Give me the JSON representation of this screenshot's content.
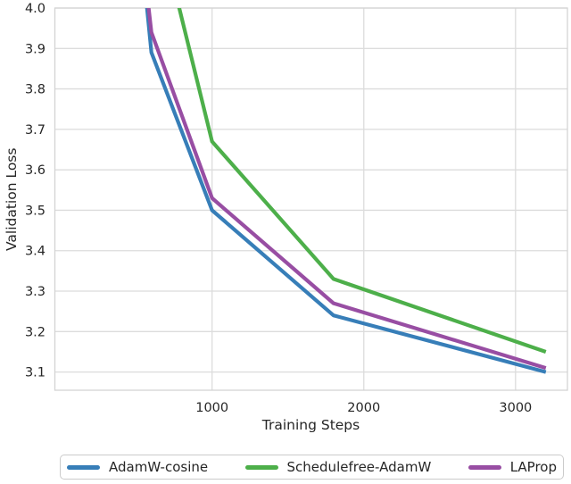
{
  "figure": {
    "background": "#ffffff",
    "text_color": "#262626",
    "grid_color": "#dcdcdc",
    "spine_color": "#d4d4d4",
    "legend_border_color": "#cbcbcb"
  },
  "chart_data": {
    "type": "line",
    "title": "",
    "xlabel": "Training Steps",
    "ylabel": "Validation Loss",
    "xlim": [
      -36,
      3342
    ],
    "ylim": [
      3.055,
      4.0
    ],
    "grid": true,
    "legend_position": "bottom-outside-horizontal",
    "xticks": [
      {
        "value": 1000,
        "label": "1000"
      },
      {
        "value": 2000,
        "label": "2000"
      },
      {
        "value": 3000,
        "label": "3000"
      }
    ],
    "yticks": [
      {
        "value": 3.1,
        "label": "3.1"
      },
      {
        "value": 3.2,
        "label": "3.2"
      },
      {
        "value": 3.3,
        "label": "3.3"
      },
      {
        "value": 3.4,
        "label": "3.4"
      },
      {
        "value": 3.5,
        "label": "3.5"
      },
      {
        "value": 3.6,
        "label": "3.6"
      },
      {
        "value": 3.7,
        "label": "3.7"
      },
      {
        "value": 3.8,
        "label": "3.8"
      },
      {
        "value": 3.9,
        "label": "3.9"
      },
      {
        "value": 4.0,
        "label": "4.0"
      }
    ],
    "series": [
      {
        "name": "AdamW-cosine",
        "color": "#377eb8",
        "points": [
          [
            400,
            4.65
          ],
          [
            600,
            3.89
          ],
          [
            1000,
            3.5
          ],
          [
            1800,
            3.24
          ],
          [
            3200,
            3.1
          ]
        ],
        "clipped_above_ymax": true
      },
      {
        "name": "Schedulefree-AdamW",
        "color": "#4daf4a",
        "points": [
          [
            600,
            4.28
          ],
          [
            1000,
            3.67
          ],
          [
            1800,
            3.33
          ],
          [
            3200,
            3.15
          ]
        ],
        "clipped_above_ymax": true
      },
      {
        "name": "LAProp",
        "color": "#984ea3",
        "points": [
          [
            400,
            4.6
          ],
          [
            600,
            3.94
          ],
          [
            1000,
            3.53
          ],
          [
            1800,
            3.27
          ],
          [
            3200,
            3.11
          ]
        ],
        "clipped_above_ymax": true
      }
    ]
  }
}
